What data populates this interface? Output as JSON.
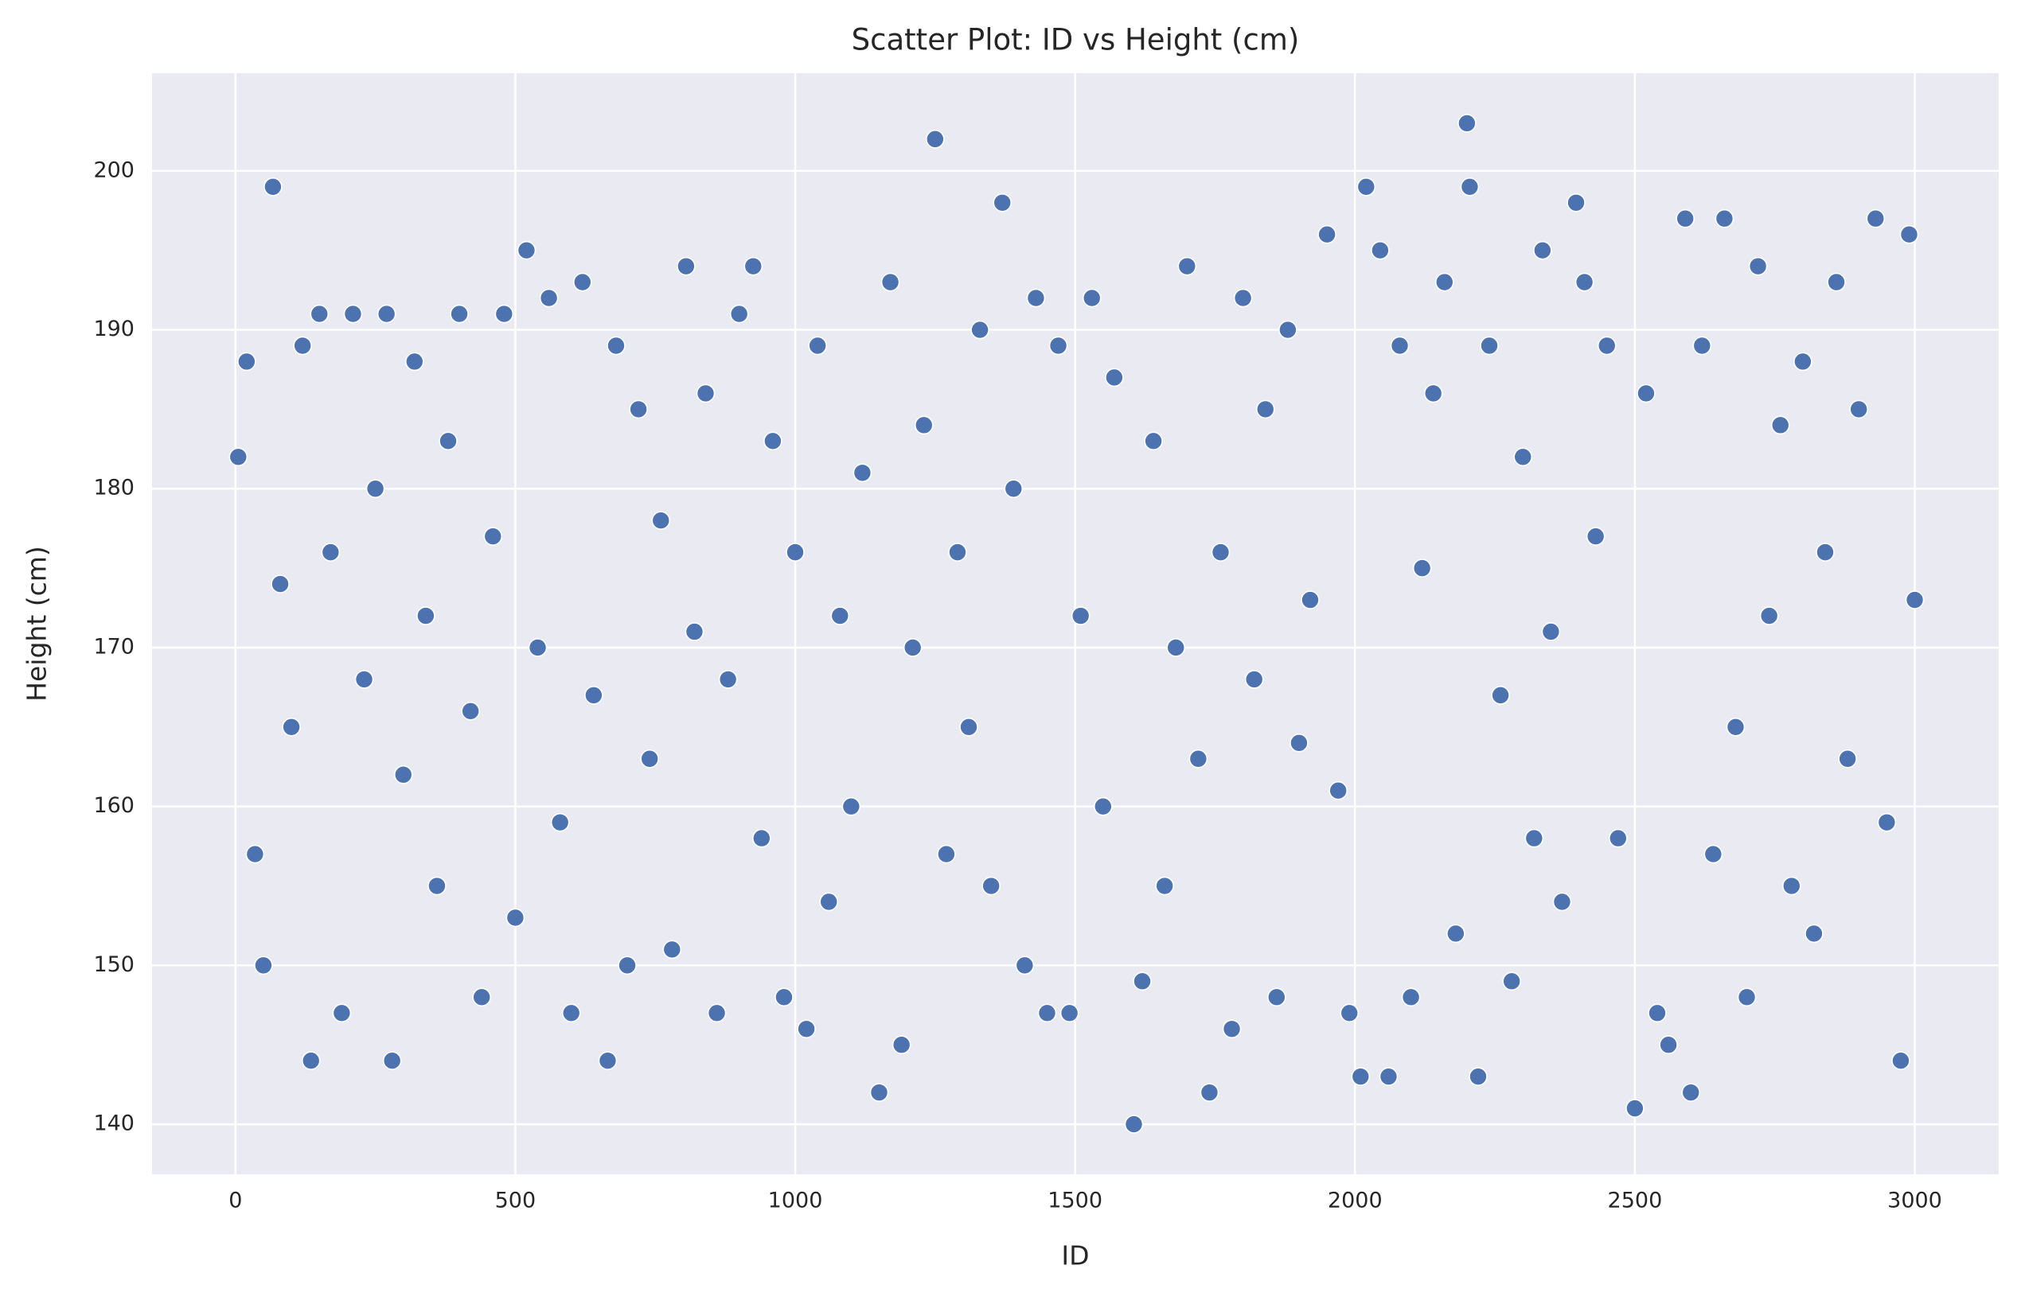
{
  "chart_data": {
    "type": "scatter",
    "title": "Scatter Plot: ID vs Height (cm)",
    "x_label": "ID",
    "y_label": "Height (cm)",
    "x": [
      5,
      20,
      35,
      50,
      67,
      80,
      100,
      120,
      135,
      150,
      170,
      190,
      210,
      230,
      250,
      270,
      280,
      300,
      320,
      340,
      360,
      380,
      400,
      420,
      440,
      460,
      480,
      500,
      520,
      540,
      560,
      580,
      600,
      620,
      640,
      665,
      680,
      700,
      720,
      740,
      760,
      780,
      805,
      820,
      840,
      860,
      880,
      900,
      925,
      940,
      960,
      980,
      1000,
      1020,
      1040,
      1060,
      1080,
      1100,
      1120,
      1150,
      1170,
      1190,
      1210,
      1230,
      1250,
      1270,
      1290,
      1310,
      1330,
      1350,
      1370,
      1390,
      1410,
      1430,
      1450,
      1470,
      1490,
      1510,
      1530,
      1550,
      1570,
      1605,
      1620,
      1640,
      1660,
      1680,
      1700,
      1720,
      1740,
      1760,
      1780,
      1800,
      1820,
      1840,
      1860,
      1880,
      1900,
      1920,
      1950,
      1970,
      1990,
      2010,
      2020,
      2045,
      2060,
      2080,
      2100,
      2120,
      2140,
      2160,
      2180,
      2200,
      2205,
      2220,
      2240,
      2260,
      2280,
      2300,
      2320,
      2335,
      2350,
      2370,
      2395,
      2410,
      2430,
      2450,
      2470,
      2500,
      2520,
      2540,
      2560,
      2590,
      2600,
      2620,
      2640,
      2660,
      2680,
      2700,
      2720,
      2740,
      2760,
      2780,
      2800,
      2820,
      2840,
      2860,
      2880,
      2900,
      2930,
      2950,
      2975,
      2990,
      3000
    ],
    "series": [
      {
        "color": "#4c72b0",
        "values": [
          182,
          188,
          157,
          150,
          199,
          174,
          165,
          189,
          144,
          191,
          176,
          147,
          191,
          168,
          180,
          191,
          144,
          162,
          188,
          172,
          155,
          183,
          191,
          166,
          148,
          177,
          191,
          153,
          195,
          170,
          192,
          159,
          147,
          193,
          167,
          144,
          189,
          150,
          185,
          163,
          178,
          151,
          194,
          171,
          186,
          147,
          168,
          191,
          194,
          158,
          183,
          148,
          176,
          146,
          189,
          154,
          172,
          160,
          181,
          142,
          193,
          145,
          170,
          184,
          202,
          157,
          176,
          165,
          190,
          155,
          198,
          180,
          150,
          192,
          147,
          189,
          147,
          172,
          192,
          160,
          187,
          140,
          149,
          183,
          155,
          170,
          194,
          163,
          142,
          176,
          146,
          192,
          168,
          185,
          148,
          190,
          164,
          173,
          196,
          161,
          147,
          143,
          199,
          195,
          143,
          189,
          148,
          175,
          186,
          193,
          152,
          203,
          199,
          143,
          189,
          167,
          149,
          182,
          158,
          195,
          171,
          154,
          198,
          193,
          177,
          189,
          158,
          141,
          186,
          147,
          145,
          197,
          142,
          189,
          157,
          197,
          165,
          148,
          194,
          172,
          184,
          155,
          188,
          152,
          176,
          193,
          163,
          185,
          197,
          159,
          144,
          196,
          173
        ]
      }
    ],
    "xlim": [
      -149,
      3150
    ],
    "ylim": [
      136.85,
      206.15
    ],
    "xticks": [
      0,
      500,
      1000,
      1500,
      2000,
      2500,
      3000
    ],
    "yticks": [
      140,
      150,
      160,
      170,
      180,
      190,
      200
    ],
    "grid": true
  }
}
